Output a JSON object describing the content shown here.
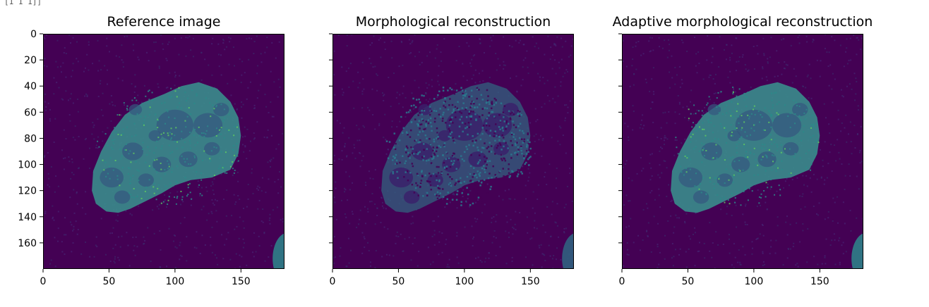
{
  "output_fragment": "[1 1 1]]",
  "chart_data": [
    {
      "type": "heatmap",
      "title": "Reference image",
      "xlim": [
        0,
        183
      ],
      "ylim": [
        180,
        0
      ],
      "x_ticks": [
        0,
        50,
        100,
        150
      ],
      "y_ticks": [
        0,
        20,
        40,
        60,
        80,
        100,
        120,
        140,
        160
      ],
      "show_y_tick_labels": true,
      "colormap": "viridis",
      "texture": "smooth",
      "colors": {
        "background": "#440154",
        "nucleus": "#3a8c8c",
        "bright": "#5ec962"
      }
    },
    {
      "type": "heatmap",
      "title": "Morphological reconstruction",
      "xlim": [
        0,
        183
      ],
      "ylim": [
        180,
        0
      ],
      "x_ticks": [
        0,
        50,
        100,
        150
      ],
      "y_ticks": [
        0,
        20,
        40,
        60,
        80,
        100,
        120,
        140,
        160
      ],
      "show_y_tick_labels": false,
      "colormap": "viridis",
      "texture": "speckled",
      "colors": {
        "background": "#440154",
        "nucleus": "#3a8c8c",
        "bright": "#5ec962"
      }
    },
    {
      "type": "heatmap",
      "title": "Adaptive morphological reconstruction",
      "xlim": [
        0,
        183
      ],
      "ylim": [
        180,
        0
      ],
      "x_ticks": [
        0,
        50,
        100,
        150
      ],
      "y_ticks": [
        0,
        20,
        40,
        60,
        80,
        100,
        120,
        140,
        160
      ],
      "show_y_tick_labels": false,
      "colormap": "viridis",
      "texture": "smooth",
      "colors": {
        "background": "#440154",
        "nucleus": "#3a8c8c",
        "bright": "#5ec962"
      }
    }
  ]
}
